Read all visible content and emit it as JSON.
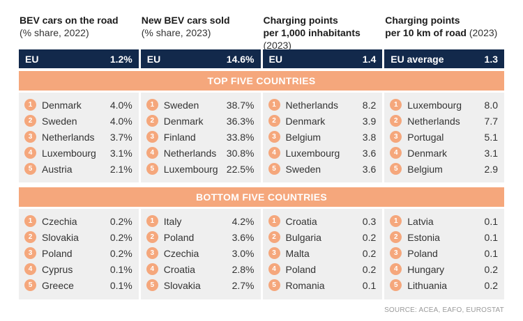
{
  "headers": [
    {
      "title": "BEV cars on the road",
      "subtitle": "(% share, 2022)"
    },
    {
      "title": "New BEV cars sold",
      "subtitle": "(% share, 2023)"
    },
    {
      "title": "Charging points",
      "title2": "per 1,000 inhabitants",
      "subtitle2": "(2023)"
    },
    {
      "title": "Charging points",
      "title2": "per 10 km of road",
      "subtitle2": "(2023)"
    }
  ],
  "eu": [
    {
      "label": "EU",
      "value": "1.2%"
    },
    {
      "label": "EU",
      "value": "14.6%"
    },
    {
      "label": "EU",
      "value": "1.4"
    },
    {
      "label": "EU average",
      "value": "1.3"
    }
  ],
  "bands": {
    "top": "TOP FIVE COUNTRIES",
    "bottom": "BOTTOM FIVE COUNTRIES"
  },
  "top": [
    [
      {
        "rank": "1",
        "name": "Denmark",
        "value": "4.0%"
      },
      {
        "rank": "2",
        "name": "Sweden",
        "value": "4.0%"
      },
      {
        "rank": "3",
        "name": "Netherlands",
        "value": "3.7%"
      },
      {
        "rank": "4",
        "name": "Luxembourg",
        "value": "3.1%"
      },
      {
        "rank": "5",
        "name": "Austria",
        "value": "2.1%"
      }
    ],
    [
      {
        "rank": "1",
        "name": "Sweden",
        "value": "38.7%"
      },
      {
        "rank": "2",
        "name": "Denmark",
        "value": "36.3%"
      },
      {
        "rank": "3",
        "name": "Finland",
        "value": "33.8%"
      },
      {
        "rank": "4",
        "name": "Netherlands",
        "value": "30.8%"
      },
      {
        "rank": "5",
        "name": "Luxembourg",
        "value": "22.5%"
      }
    ],
    [
      {
        "rank": "1",
        "name": "Netherlands",
        "value": "8.2"
      },
      {
        "rank": "2",
        "name": "Denmark",
        "value": "3.9"
      },
      {
        "rank": "3",
        "name": "Belgium",
        "value": "3.8"
      },
      {
        "rank": "4",
        "name": "Luxembourg",
        "value": "3.6"
      },
      {
        "rank": "5",
        "name": "Sweden",
        "value": "3.6"
      }
    ],
    [
      {
        "rank": "1",
        "name": "Luxembourg",
        "value": "8.0"
      },
      {
        "rank": "2",
        "name": "Netherlands",
        "value": "7.7"
      },
      {
        "rank": "3",
        "name": "Portugal",
        "value": "5.1"
      },
      {
        "rank": "4",
        "name": "Denmark",
        "value": "3.1"
      },
      {
        "rank": "5",
        "name": "Belgium",
        "value": "2.9"
      }
    ]
  ],
  "bottom": [
    [
      {
        "rank": "1",
        "name": "Czechia",
        "value": "0.2%"
      },
      {
        "rank": "2",
        "name": "Slovakia",
        "value": "0.2%"
      },
      {
        "rank": "3",
        "name": "Poland",
        "value": "0.2%"
      },
      {
        "rank": "4",
        "name": "Cyprus",
        "value": "0.1%"
      },
      {
        "rank": "5",
        "name": "Greece",
        "value": "0.1%"
      }
    ],
    [
      {
        "rank": "1",
        "name": "Italy",
        "value": "4.2%"
      },
      {
        "rank": "2",
        "name": "Poland",
        "value": "3.6%"
      },
      {
        "rank": "3",
        "name": "Czechia",
        "value": "3.0%"
      },
      {
        "rank": "4",
        "name": "Croatia",
        "value": "2.8%"
      },
      {
        "rank": "5",
        "name": "Slovakia",
        "value": "2.7%"
      }
    ],
    [
      {
        "rank": "1",
        "name": "Croatia",
        "value": "0.3"
      },
      {
        "rank": "2",
        "name": "Bulgaria",
        "value": "0.2"
      },
      {
        "rank": "3",
        "name": "Malta",
        "value": "0.2"
      },
      {
        "rank": "4",
        "name": "Poland",
        "value": "0.2"
      },
      {
        "rank": "5",
        "name": "Romania",
        "value": "0.1"
      }
    ],
    [
      {
        "rank": "1",
        "name": "Latvia",
        "value": "0.1"
      },
      {
        "rank": "2",
        "name": "Estonia",
        "value": "0.1"
      },
      {
        "rank": "3",
        "name": "Poland",
        "value": "0.1"
      },
      {
        "rank": "4",
        "name": "Hungary",
        "value": "0.2"
      },
      {
        "rank": "5",
        "name": "Lithuania",
        "value": "0.2"
      }
    ]
  ],
  "source": "SOURCE: ACEA, EAFO, EUROSTAT",
  "colors": {
    "navy": "#12294b",
    "accent": "#f5a77c",
    "panel": "#efefef"
  }
}
